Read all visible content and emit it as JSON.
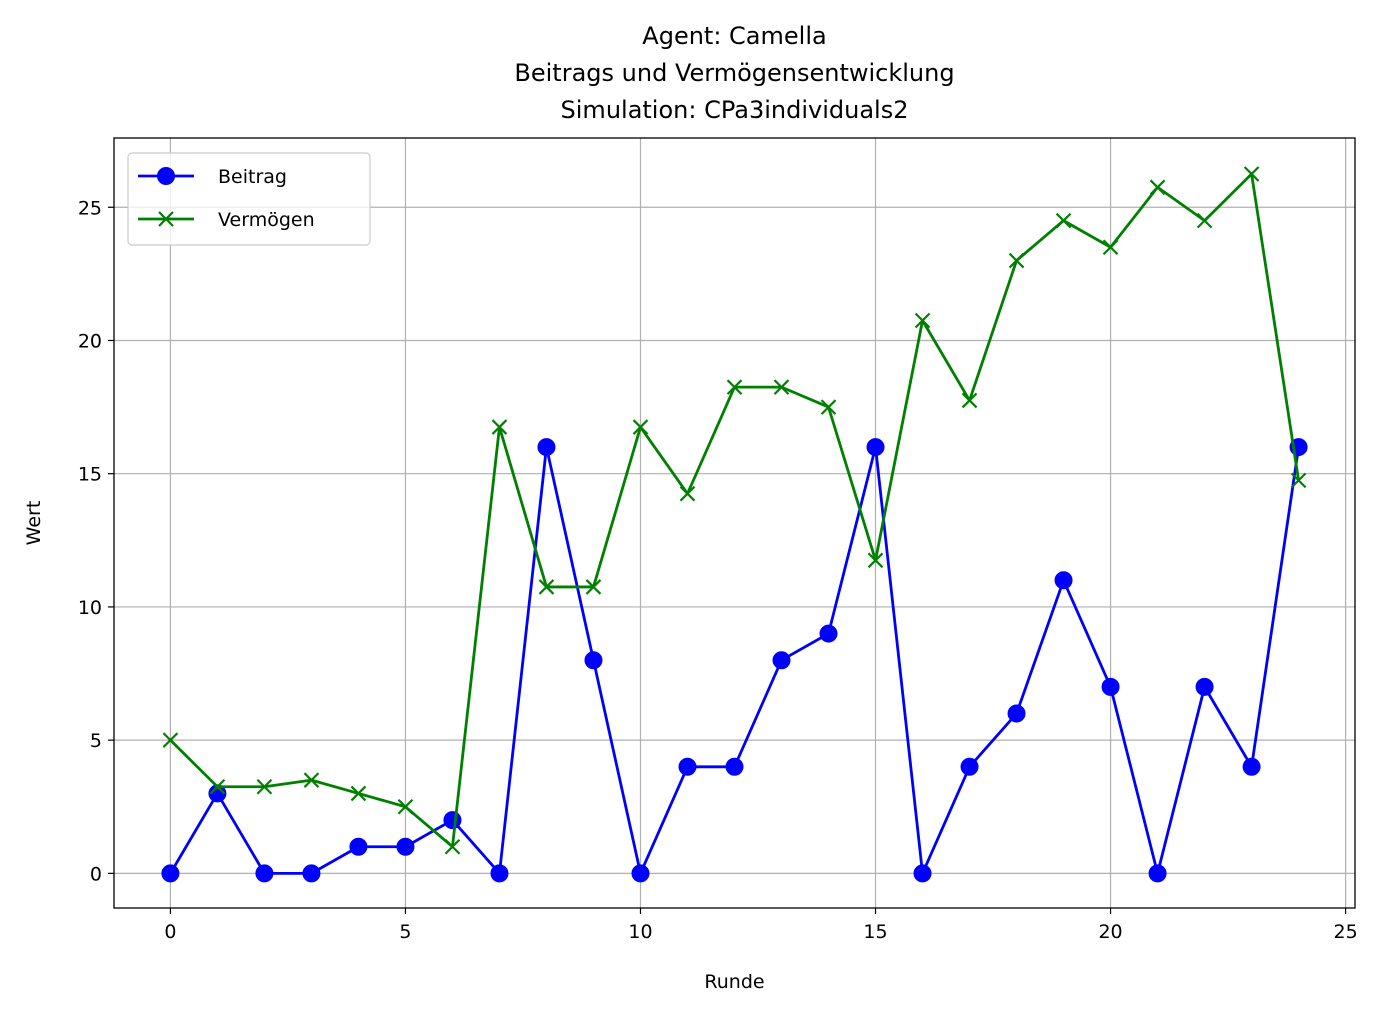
{
  "chart_data": {
    "type": "line",
    "title_lines": [
      "Agent: Camella",
      "Beitrags und Vermögensentwicklung",
      "Simulation: CPa3individuals2"
    ],
    "xlabel": "Runde",
    "ylabel": "Wert",
    "xlim": [
      -1.2,
      25.2
    ],
    "ylim": [
      -1.3,
      27.6
    ],
    "xticks": [
      0,
      5,
      10,
      15,
      20,
      25
    ],
    "yticks": [
      0,
      5,
      10,
      15,
      20,
      25
    ],
    "grid": true,
    "legend_position": "top-left",
    "x": [
      0,
      1,
      2,
      3,
      4,
      5,
      6,
      7,
      8,
      9,
      10,
      11,
      12,
      13,
      14,
      15,
      16,
      17,
      18,
      19,
      20,
      21,
      22,
      23,
      24
    ],
    "series": [
      {
        "name": "Beitrag",
        "color": "#0000ff",
        "marker": "circle",
        "values": [
          0,
          3,
          0,
          0,
          1,
          1,
          2,
          0,
          16,
          8,
          0,
          4,
          4,
          8,
          9,
          16,
          0,
          4,
          6,
          11,
          7,
          0,
          7,
          4,
          16
        ]
      },
      {
        "name": "Vermögen",
        "color": "#008000",
        "marker": "x",
        "values": [
          5,
          3.25,
          3.25,
          3.5,
          3,
          2.5,
          1,
          16.75,
          10.75,
          10.75,
          16.75,
          14.25,
          18.25,
          18.25,
          17.5,
          11.75,
          20.75,
          17.75,
          23,
          24.5,
          23.5,
          25.75,
          24.5,
          26.25,
          14.75
        ]
      }
    ]
  }
}
